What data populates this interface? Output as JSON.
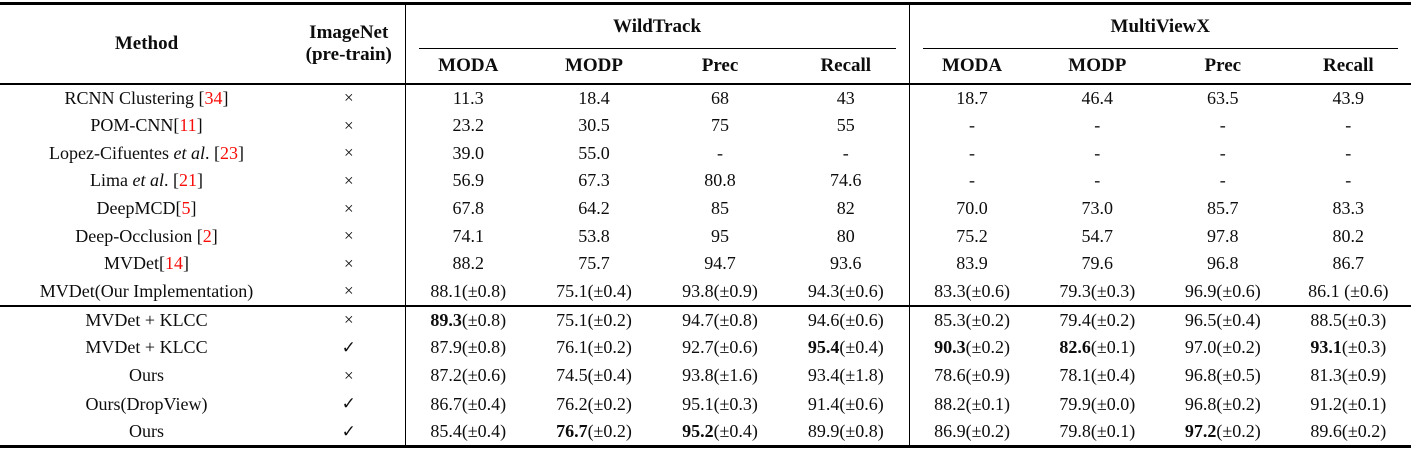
{
  "colors": {
    "citation": "#f70d09",
    "text": "#0d0d0d",
    "rule": "#000000"
  },
  "symbols": {
    "x": "×",
    "check": "✓"
  },
  "table": {
    "headers": {
      "method": "Method",
      "imagenet_line1": "ImageNet",
      "imagenet_line2": "(pre-train)"
    },
    "groups": [
      {
        "label": "WildTrack"
      },
      {
        "label": "MultiViewX"
      }
    ],
    "metrics": [
      "MODA",
      "MODP",
      "Prec",
      "Recall"
    ],
    "sections": [
      {
        "name": "baselines",
        "rows": [
          {
            "method": [
              [
                "RCNN Clustering [",
                "n"
              ],
              [
                "34",
                "c"
              ],
              [
                "]",
                "n"
              ]
            ],
            "pretrain": "x",
            "cells": [
              {
                "v": "11.3"
              },
              {
                "v": "18.4"
              },
              {
                "v": "68"
              },
              {
                "v": "43"
              },
              {
                "v": "18.7"
              },
              {
                "v": "46.4"
              },
              {
                "v": "63.5"
              },
              {
                "v": "43.9"
              }
            ]
          },
          {
            "method": [
              [
                "POM-CNN[",
                "n"
              ],
              [
                "11",
                "c"
              ],
              [
                "]",
                "n"
              ]
            ],
            "pretrain": "x",
            "cells": [
              {
                "v": "23.2"
              },
              {
                "v": "30.5"
              },
              {
                "v": "75"
              },
              {
                "v": "55"
              },
              {
                "v": "-"
              },
              {
                "v": "-"
              },
              {
                "v": "-"
              },
              {
                "v": "-"
              }
            ]
          },
          {
            "method": [
              [
                "Lopez-Cifuentes ",
                "n"
              ],
              [
                "et al",
                "i"
              ],
              [
                ". [",
                "n"
              ],
              [
                "23",
                "c"
              ],
              [
                "]",
                "n"
              ]
            ],
            "pretrain": "x",
            "cells": [
              {
                "v": "39.0"
              },
              {
                "v": "55.0"
              },
              {
                "v": "-"
              },
              {
                "v": "-"
              },
              {
                "v": "-"
              },
              {
                "v": "-"
              },
              {
                "v": "-"
              },
              {
                "v": "-"
              }
            ]
          },
          {
            "method": [
              [
                "Lima ",
                "n"
              ],
              [
                "et al",
                "i"
              ],
              [
                ". [",
                "n"
              ],
              [
                "21",
                "c"
              ],
              [
                "]",
                "n"
              ]
            ],
            "pretrain": "x",
            "cells": [
              {
                "v": "56.9"
              },
              {
                "v": "67.3"
              },
              {
                "v": "80.8"
              },
              {
                "v": "74.6"
              },
              {
                "v": "-"
              },
              {
                "v": "-"
              },
              {
                "v": "-"
              },
              {
                "v": "-"
              }
            ]
          },
          {
            "method": [
              [
                "DeepMCD[",
                "n"
              ],
              [
                "5",
                "c"
              ],
              [
                "]",
                "n"
              ]
            ],
            "pretrain": "x",
            "cells": [
              {
                "v": "67.8"
              },
              {
                "v": "64.2"
              },
              {
                "v": "85"
              },
              {
                "v": "82"
              },
              {
                "v": "70.0"
              },
              {
                "v": "73.0"
              },
              {
                "v": "85.7"
              },
              {
                "v": "83.3"
              }
            ]
          },
          {
            "method": [
              [
                "Deep-Occlusion [",
                "n"
              ],
              [
                "2",
                "c"
              ],
              [
                "]",
                "n"
              ]
            ],
            "pretrain": "x",
            "cells": [
              {
                "v": "74.1"
              },
              {
                "v": "53.8"
              },
              {
                "v": "95"
              },
              {
                "v": "80"
              },
              {
                "v": "75.2"
              },
              {
                "v": "54.7"
              },
              {
                "v": "97.8"
              },
              {
                "v": "80.2"
              }
            ]
          },
          {
            "method": [
              [
                "MVDet[",
                "n"
              ],
              [
                "14",
                "c"
              ],
              [
                "]",
                "n"
              ]
            ],
            "pretrain": "x",
            "cells": [
              {
                "v": "88.2"
              },
              {
                "v": "75.7"
              },
              {
                "v": "94.7"
              },
              {
                "v": "93.6"
              },
              {
                "v": "83.9"
              },
              {
                "v": "79.6"
              },
              {
                "v": "96.8"
              },
              {
                "v": "86.7"
              }
            ]
          },
          {
            "method": [
              [
                "MVDet(Our Implementation)",
                "n"
              ]
            ],
            "pretrain": "x",
            "cells": [
              {
                "v": "88.1",
                "e": "(±0.8)"
              },
              {
                "v": "75.1",
                "e": "(±0.4)"
              },
              {
                "v": "93.8",
                "e": "(±0.9)"
              },
              {
                "v": "94.3",
                "e": "(±0.6)"
              },
              {
                "v": "83.3",
                "e": "(±0.6)"
              },
              {
                "v": "79.3",
                "e": "(±0.3)"
              },
              {
                "v": "96.9",
                "e": "(±0.6)"
              },
              {
                "v": "86.1",
                "e": " (±0.6)"
              }
            ]
          }
        ]
      },
      {
        "name": "ours",
        "rows": [
          {
            "method": [
              [
                "MVDet + KLCC",
                "n"
              ]
            ],
            "pretrain": "x",
            "cells": [
              {
                "v": "89.3",
                "e": "(±0.8)",
                "b": true
              },
              {
                "v": "75.1",
                "e": "(±0.2)"
              },
              {
                "v": "94.7",
                "e": "(±0.8)"
              },
              {
                "v": "94.6",
                "e": "(±0.6)"
              },
              {
                "v": "85.3",
                "e": "(±0.2)"
              },
              {
                "v": "79.4",
                "e": "(±0.2)"
              },
              {
                "v": "96.5",
                "e": "(±0.4)"
              },
              {
                "v": "88.5",
                "e": "(±0.3)"
              }
            ]
          },
          {
            "method": [
              [
                "MVDet + KLCC",
                "n"
              ]
            ],
            "pretrain": "check",
            "cells": [
              {
                "v": "87.9",
                "e": "(±0.8)"
              },
              {
                "v": "76.1",
                "e": "(±0.2)"
              },
              {
                "v": "92.7",
                "e": "(±0.6)"
              },
              {
                "v": "95.4",
                "e": "(±0.4)",
                "b": true
              },
              {
                "v": "90.3",
                "e": "(±0.2)",
                "b": true
              },
              {
                "v": "82.6",
                "e": "(±0.1)",
                "b": true
              },
              {
                "v": "97.0",
                "e": "(±0.2)"
              },
              {
                "v": "93.1",
                "e": "(±0.3)",
                "b": true
              }
            ]
          },
          {
            "method": [
              [
                "Ours",
                "n"
              ]
            ],
            "pretrain": "x",
            "cells": [
              {
                "v": "87.2",
                "e": "(±0.6)"
              },
              {
                "v": "74.5",
                "e": "(±0.4)"
              },
              {
                "v": "93.8",
                "e": "(±1.6)"
              },
              {
                "v": "93.4",
                "e": "(±1.8)"
              },
              {
                "v": "78.6",
                "e": "(±0.9)"
              },
              {
                "v": "78.1",
                "e": "(±0.4)"
              },
              {
                "v": "96.8",
                "e": "(±0.5)"
              },
              {
                "v": "81.3",
                "e": "(±0.9)"
              }
            ]
          },
          {
            "method": [
              [
                "Ours(DropView)",
                "n"
              ]
            ],
            "pretrain": "check",
            "cells": [
              {
                "v": "86.7",
                "e": "(±0.4)"
              },
              {
                "v": "76.2",
                "e": "(±0.2)"
              },
              {
                "v": "95.1",
                "e": "(±0.3)"
              },
              {
                "v": "91.4",
                "e": "(±0.6)"
              },
              {
                "v": "88.2",
                "e": "(±0.1)"
              },
              {
                "v": "79.9",
                "e": "(±0.0)"
              },
              {
                "v": "96.8",
                "e": "(±0.2)"
              },
              {
                "v": "91.2",
                "e": "(±0.1)"
              }
            ]
          },
          {
            "method": [
              [
                "Ours",
                "n"
              ]
            ],
            "pretrain": "check",
            "cells": [
              {
                "v": "85.4",
                "e": "(±0.4)"
              },
              {
                "v": "76.7",
                "e": "(±0.2)",
                "b": true
              },
              {
                "v": "95.2",
                "e": "(±0.4)",
                "b": true
              },
              {
                "v": "89.9",
                "e": "(±0.8)"
              },
              {
                "v": "86.9",
                "e": "(±0.2)"
              },
              {
                "v": "79.8",
                "e": "(±0.1)"
              },
              {
                "v": "97.2",
                "e": "(±0.2)",
                "b": true
              },
              {
                "v": "89.6",
                "e": "(±0.2)"
              }
            ]
          }
        ]
      }
    ]
  }
}
